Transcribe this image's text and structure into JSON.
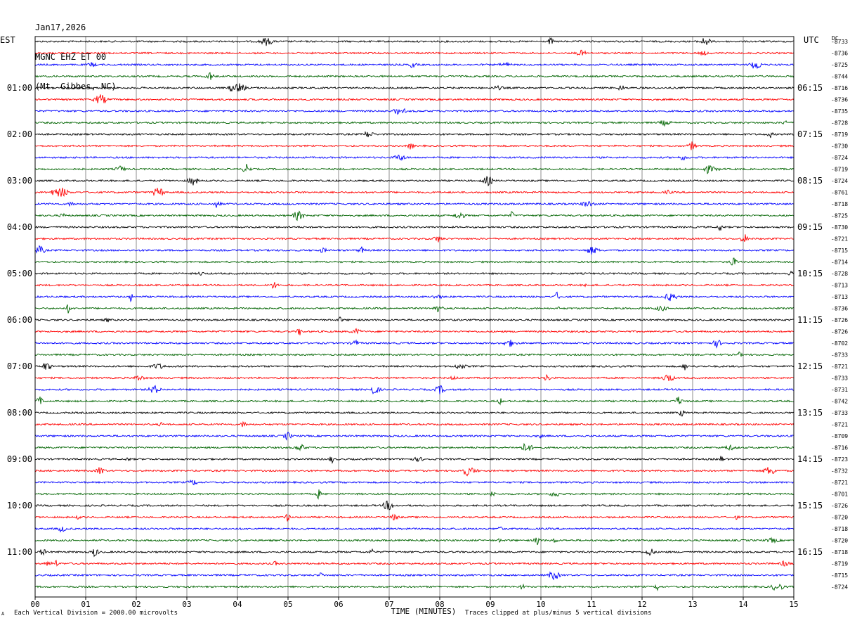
{
  "header": {
    "date": "Jan17,2026",
    "station": "MGNC EHZ ET 00",
    "location": "(Mt. Gibbes, NC)"
  },
  "left_zone": "EST",
  "right_zone": "UTC",
  "dc_label": "DC",
  "footer": {
    "scale_note": "Each Vertical Division = 2000.00 microvolts",
    "clip_note": "Traces clipped at plus/minus 5 vertical divisions",
    "corner_mark": "A"
  },
  "chart_data": {
    "type": "line",
    "xlabel": "TIME (MINUTES)",
    "xlim": [
      0,
      15
    ],
    "x_ticks": [
      "00",
      "01",
      "02",
      "03",
      "04",
      "05",
      "06",
      "07",
      "08",
      "09",
      "10",
      "11",
      "12",
      "13",
      "14",
      "15"
    ],
    "trace_colors": [
      "#000000",
      "#ff0000",
      "#0000ff",
      "#006400"
    ],
    "left_hour_labels": [
      "01:00",
      "02:00",
      "03:00",
      "04:00",
      "05:00",
      "06:00",
      "07:00",
      "08:00",
      "09:00",
      "10:00",
      "11:00"
    ],
    "right_hour_labels": [
      "06:15",
      "07:15",
      "08:15",
      "09:15",
      "10:15",
      "11:15",
      "12:15",
      "13:15",
      "14:15",
      "15:15",
      "16:15"
    ],
    "dc_offsets": [
      "-8733",
      "-8736",
      "-8725",
      "-8744",
      "-8716",
      "-8736",
      "-8735",
      "-8728",
      "-8719",
      "-8730",
      "-8724",
      "-8719",
      "-8724",
      "-8761",
      "-8718",
      "-8725",
      "-8730",
      "-8721",
      "-8715",
      "-8714",
      "-8728",
      "-8713",
      "-8713",
      "-8736",
      "-8726",
      "-8726",
      "-8702",
      "-8733",
      "-8721",
      "-8733",
      "-8731",
      "-8742",
      "-8733",
      "-8721",
      "-8709",
      "-8716",
      "-8723",
      "-8732",
      "-8721",
      "-8701",
      "-8726",
      "-8720",
      "-8718",
      "-8720",
      "-8718",
      "-8719",
      "-8715",
      "-8724"
    ]
  }
}
